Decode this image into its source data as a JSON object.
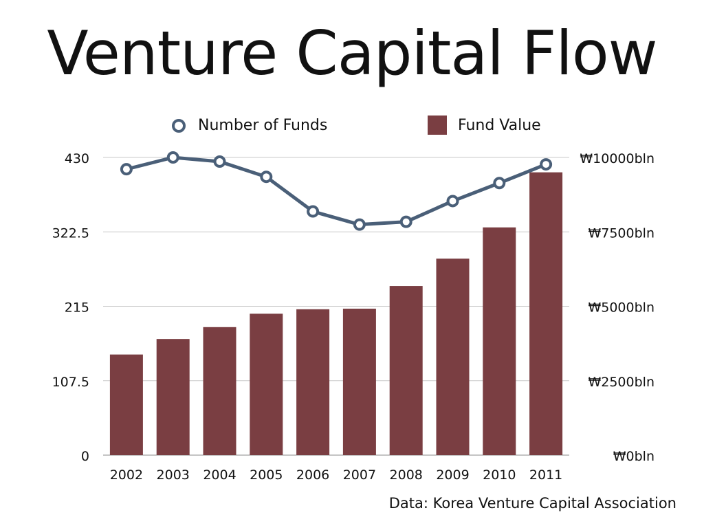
{
  "title": "Venture Capital Flow",
  "source": "Data: Korea Venture Capital Association",
  "colors": {
    "bar": "#7a3e42",
    "line": "#4a5f78",
    "grid": "#c8c8c8"
  },
  "chart_data": {
    "type": "bar",
    "categories": [
      "2002",
      "2003",
      "2004",
      "2005",
      "2006",
      "2007",
      "2008",
      "2009",
      "2010",
      "2011"
    ],
    "grid": true,
    "legend_position": "top",
    "series": [
      {
        "name": "Fund Value",
        "type": "bar",
        "axis": "right",
        "values": [
          3380,
          3900,
          4300,
          4750,
          4900,
          4920,
          5680,
          6600,
          7650,
          9500
        ]
      },
      {
        "name": "Number of Funds",
        "type": "line",
        "axis": "left",
        "values": [
          413,
          430,
          424,
          402,
          352,
          333,
          337,
          367,
          393,
          420
        ]
      }
    ],
    "y_left": {
      "ylim": [
        0,
        430
      ],
      "ticks": [
        "0",
        "107.5",
        "215",
        "322.5",
        "430"
      ]
    },
    "y_right": {
      "ylim": [
        0,
        10000
      ],
      "ticks": [
        "₩0bln",
        "₩2500bln",
        "₩5000bln",
        "₩7500bln",
        "₩10000bln"
      ]
    }
  }
}
